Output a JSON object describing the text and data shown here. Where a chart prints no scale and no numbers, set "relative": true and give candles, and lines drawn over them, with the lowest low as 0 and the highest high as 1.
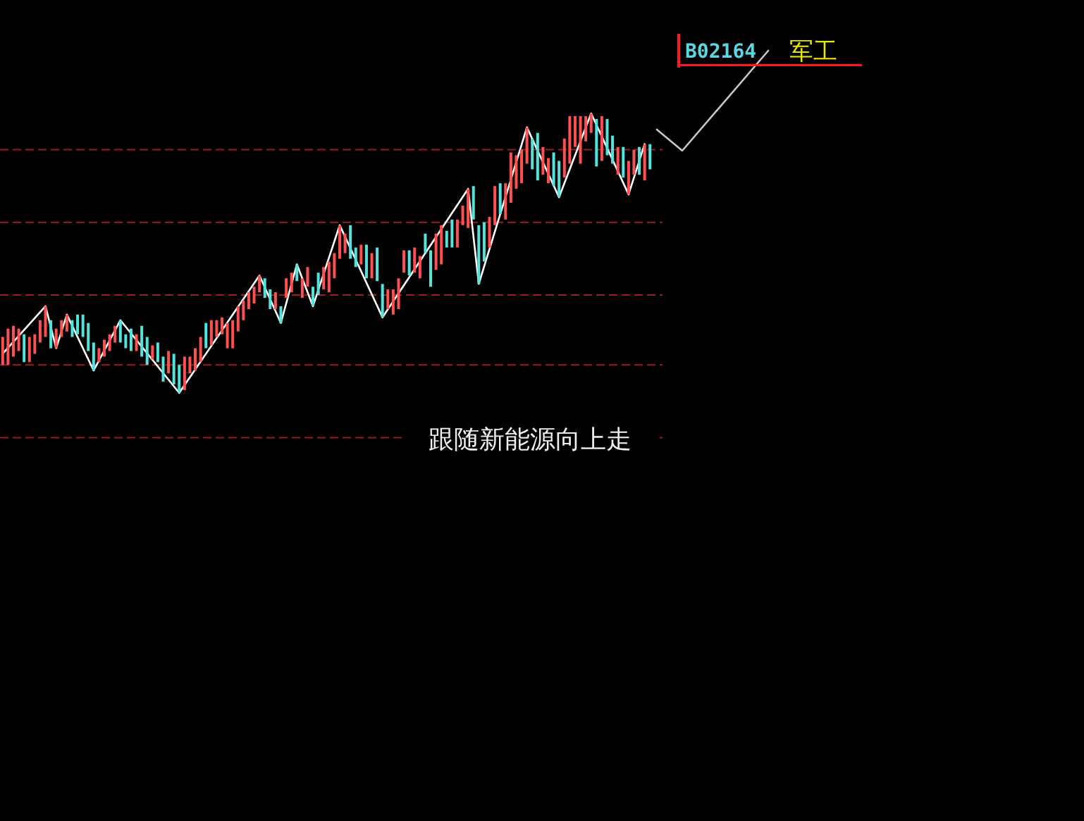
{
  "chart_data": {
    "type": "candlestick",
    "title": "B02164",
    "subtitle": "军工",
    "annotations": [
      "跟随新能源向上走"
    ],
    "relative": true,
    "categories": [
      null,
      null,
      null,
      null,
      null,
      null,
      null,
      null,
      null,
      null,
      null,
      null,
      null,
      null,
      null,
      null,
      null,
      null,
      null,
      null,
      null,
      null,
      null,
      null,
      null,
      null,
      null,
      null,
      null,
      null,
      null,
      null,
      null,
      null,
      null,
      null,
      null,
      null,
      null,
      null,
      null,
      null,
      null,
      null,
      null,
      null,
      null,
      null,
      null,
      null,
      null,
      null,
      null,
      null,
      null,
      null,
      null,
      null,
      null,
      null,
      null,
      null,
      null,
      null,
      null,
      null,
      null,
      null,
      null,
      null,
      null,
      null,
      null,
      null,
      null,
      null,
      null,
      null,
      null,
      null,
      null,
      null,
      null,
      null,
      null,
      null,
      null,
      null,
      null,
      null,
      null,
      null,
      null,
      null,
      null,
      null,
      null,
      null,
      null,
      null,
      null,
      null,
      null,
      null,
      null,
      null,
      null,
      null,
      null,
      null,
      null,
      null,
      null,
      null,
      null,
      null,
      null,
      null,
      null,
      null,
      null,
      null
    ],
    "ohlc": [
      [
        0.1,
        0.2,
        0.1,
        0.2
      ],
      [
        0.1,
        0.23,
        0.1,
        0.23
      ],
      [
        0.13,
        0.24,
        0.13,
        0.24
      ],
      [
        0.15,
        0.23,
        0.15,
        0.23
      ],
      [
        0.21,
        0.21,
        0.11,
        0.11
      ],
      [
        0.11,
        0.2,
        0.11,
        0.2
      ],
      [
        0.14,
        0.21,
        0.14,
        0.21
      ],
      [
        0.18,
        0.26,
        0.18,
        0.26
      ],
      [
        0.2,
        0.31,
        0.2,
        0.31
      ],
      [
        0.26,
        0.26,
        0.16,
        0.16
      ],
      [
        0.16,
        0.23,
        0.16,
        0.23
      ],
      [
        0.2,
        0.26,
        0.2,
        0.26
      ],
      [
        0.22,
        0.28,
        0.22,
        0.28
      ],
      [
        0.26,
        0.26,
        0.2,
        0.2
      ],
      [
        0.28,
        0.28,
        0.21,
        0.21
      ],
      [
        0.28,
        0.28,
        0.2,
        0.2
      ],
      [
        0.25,
        0.25,
        0.15,
        0.15
      ],
      [
        0.18,
        0.18,
        0.08,
        0.08
      ],
      [
        0.11,
        0.16,
        0.11,
        0.16
      ],
      [
        0.13,
        0.19,
        0.13,
        0.19
      ],
      [
        0.15,
        0.21,
        0.15,
        0.21
      ],
      [
        0.18,
        0.24,
        0.18,
        0.24
      ],
      [
        0.26,
        0.26,
        0.18,
        0.18
      ],
      [
        0.21,
        0.21,
        0.16,
        0.16
      ],
      [
        0.23,
        0.23,
        0.15,
        0.15
      ],
      [
        0.15,
        0.21,
        0.15,
        0.21
      ],
      [
        0.24,
        0.24,
        0.13,
        0.13
      ],
      [
        0.2,
        0.2,
        0.1,
        0.1
      ],
      [
        0.12,
        0.17,
        0.12,
        0.17
      ],
      [
        0.18,
        0.18,
        0.11,
        0.11
      ],
      [
        0.13,
        0.13,
        0.04,
        0.04
      ],
      [
        0.07,
        0.15,
        0.07,
        0.15
      ],
      [
        0.14,
        0.14,
        0.03,
        0.03
      ],
      [
        0.1,
        0.1,
        0,
        0
      ],
      [
        0.01,
        0.13,
        0.01,
        0.13
      ],
      [
        0.07,
        0.13,
        0.07,
        0.13
      ],
      [
        0.08,
        0.16,
        0.08,
        0.16
      ],
      [
        0.11,
        0.2,
        0.11,
        0.2
      ],
      [
        0.25,
        0.25,
        0.16,
        0.16
      ],
      [
        0.17,
        0.26,
        0.17,
        0.26
      ],
      [
        0.2,
        0.26,
        0.2,
        0.26
      ],
      [
        0.21,
        0.27,
        0.21,
        0.27
      ],
      [
        0.16,
        0.25,
        0.16,
        0.25
      ],
      [
        0.16,
        0.26,
        0.16,
        0.26
      ],
      [
        0.22,
        0.31,
        0.22,
        0.31
      ],
      [
        0.26,
        0.33,
        0.26,
        0.33
      ],
      [
        0.3,
        0.36,
        0.3,
        0.36
      ],
      [
        0.32,
        0.38,
        0.32,
        0.38
      ],
      [
        0.36,
        0.42,
        0.36,
        0.42
      ],
      [
        0.41,
        0.41,
        0.34,
        0.34
      ],
      [
        0.37,
        0.37,
        0.3,
        0.3
      ],
      [
        0.3,
        0.36,
        0.3,
        0.36
      ],
      [
        0.31,
        0.31,
        0.25,
        0.25
      ],
      [
        0.34,
        0.41,
        0.34,
        0.41
      ],
      [
        0.36,
        0.43,
        0.36,
        0.43
      ],
      [
        0.46,
        0.46,
        0.4,
        0.4
      ],
      [
        0.34,
        0.41,
        0.34,
        0.41
      ],
      [
        0.38,
        0.45,
        0.38,
        0.45
      ],
      [
        0.38,
        0.38,
        0.31,
        0.31
      ],
      [
        0.43,
        0.43,
        0.35,
        0.35
      ],
      [
        0.37,
        0.45,
        0.37,
        0.45
      ],
      [
        0.36,
        0.47,
        0.36,
        0.47
      ],
      [
        0.41,
        0.5,
        0.41,
        0.5
      ],
      [
        0.48,
        0.6,
        0.48,
        0.6
      ],
      [
        0.5,
        0.57,
        0.5,
        0.57
      ],
      [
        0.6,
        0.6,
        0.48,
        0.48
      ],
      [
        0.52,
        0.52,
        0.45,
        0.45
      ],
      [
        0.46,
        0.53,
        0.46,
        0.53
      ],
      [
        0.53,
        0.53,
        0.41,
        0.41
      ],
      [
        0.41,
        0.5,
        0.41,
        0.5
      ],
      [
        0.52,
        0.52,
        0.4,
        0.4
      ],
      [
        0.39,
        0.39,
        0.27,
        0.27
      ],
      [
        0.3,
        0.37,
        0.3,
        0.37
      ],
      [
        0.28,
        0.37,
        0.28,
        0.37
      ],
      [
        0.3,
        0.41,
        0.3,
        0.41
      ],
      [
        0.43,
        0.51,
        0.43,
        0.51
      ],
      [
        0.51,
        0.51,
        0.42,
        0.42
      ],
      [
        0.43,
        0.52,
        0.43,
        0.52
      ],
      [
        0.41,
        0.49,
        0.41,
        0.49
      ],
      [
        0.57,
        0.57,
        0.5,
        0.5
      ],
      [
        0.51,
        0.51,
        0.38,
        0.38
      ],
      [
        0.44,
        0.57,
        0.44,
        0.57
      ],
      [
        0.46,
        0.6,
        0.46,
        0.6
      ],
      [
        0.58,
        0.58,
        0.52,
        0.52
      ],
      [
        0.62,
        0.62,
        0.52,
        0.52
      ],
      [
        0.52,
        0.62,
        0.52,
        0.62
      ],
      [
        0.6,
        0.67,
        0.6,
        0.67
      ],
      [
        0.59,
        0.73,
        0.59,
        0.73
      ],
      [
        0.74,
        0.74,
        0.62,
        0.62
      ],
      [
        0.6,
        0.6,
        0.39,
        0.39
      ],
      [
        0.61,
        0.61,
        0.47,
        0.47
      ],
      [
        0.52,
        0.63,
        0.52,
        0.63
      ],
      [
        0.6,
        0.74,
        0.6,
        0.74
      ],
      [
        0.75,
        0.75,
        0.64,
        0.64
      ],
      [
        0.62,
        0.75,
        0.62,
        0.75
      ],
      [
        0.68,
        0.86,
        0.68,
        0.86
      ],
      [
        0.73,
        0.85,
        0.73,
        0.85
      ],
      [
        0.75,
        0.87,
        0.75,
        0.87
      ],
      [
        0.82,
        0.95,
        0.82,
        0.95
      ],
      [
        0.91,
        0.91,
        0.8,
        0.8
      ],
      [
        0.93,
        0.93,
        0.76,
        0.76
      ],
      [
        0.78,
        0.88,
        0.78,
        0.88
      ],
      [
        0.75,
        0.84,
        0.75,
        0.84
      ],
      [
        0.86,
        0.86,
        0.74,
        0.74
      ],
      [
        0.83,
        0.83,
        0.7,
        0.7
      ],
      [
        0.77,
        0.91,
        0.77,
        0.91
      ],
      [
        0.82,
        0.99,
        0.82,
        0.99
      ],
      [
        0.88,
        0.99,
        0.88,
        0.99
      ],
      [
        0.82,
        0.99,
        0.82,
        0.99
      ],
      [
        0.9,
        0.99,
        0.9,
        0.99
      ],
      [
        0.93,
        1,
        0.93,
        1
      ],
      [
        0.98,
        0.98,
        0.81,
        0.81
      ],
      [
        0.83,
        0.99,
        0.83,
        0.99
      ],
      [
        0.98,
        0.98,
        0.85,
        0.85
      ],
      [
        0.92,
        0.92,
        0.82,
        0.82
      ],
      [
        0.78,
        0.88,
        0.78,
        0.88
      ],
      [
        0.88,
        0.88,
        0.77,
        0.77
      ],
      [
        0.71,
        0.83,
        0.71,
        0.83
      ],
      [
        0.78,
        0.87,
        0.78,
        0.87
      ],
      [
        0.88,
        0.88,
        0.78,
        0.78
      ],
      [
        0.76,
        0.89,
        0.76,
        0.89
      ],
      [
        0.89,
        0.89,
        0.8,
        0.8
      ]
    ],
    "colors": [
      "#ff4f4f",
      "#ff4f4f",
      "#ff4f4f",
      "#ff4f4f",
      "#52e3dc",
      "#ff4f4f",
      "#ff4f4f",
      "#ff4f4f",
      "#ff4f4f",
      "#52e3dc",
      "#ff4f4f",
      "#ff4f4f",
      "#ff4f4f",
      "#52e3dc",
      "#52e3dc",
      "#52e3dc",
      "#52e3dc",
      "#52e3dc",
      "#ff4f4f",
      "#ff4f4f",
      "#ff4f4f",
      "#ff4f4f",
      "#52e3dc",
      "#52e3dc",
      "#52e3dc",
      "#ff4f4f",
      "#52e3dc",
      "#52e3dc",
      "#ff4f4f",
      "#52e3dc",
      "#52e3dc",
      "#ff4f4f",
      "#52e3dc",
      "#52e3dc",
      "#ff4f4f",
      "#ff4f4f",
      "#ff4f4f",
      "#ff4f4f",
      "#52e3dc",
      "#ff4f4f",
      "#ff4f4f",
      "#ff4f4f",
      "#ff4f4f",
      "#ff4f4f",
      "#ff4f4f",
      "#ff4f4f",
      "#ff4f4f",
      "#ff4f4f",
      "#ff4f4f",
      "#52e3dc",
      "#52e3dc",
      "#ff4f4f",
      "#52e3dc",
      "#ff4f4f",
      "#ff4f4f",
      "#52e3dc",
      "#ff4f4f",
      "#ff4f4f",
      "#52e3dc",
      "#52e3dc",
      "#ff4f4f",
      "#ff4f4f",
      "#ff4f4f",
      "#ff4f4f",
      "#ff4f4f",
      "#52e3dc",
      "#52e3dc",
      "#ff4f4f",
      "#52e3dc",
      "#ff4f4f",
      "#52e3dc",
      "#52e3dc",
      "#ff4f4f",
      "#ff4f4f",
      "#ff4f4f",
      "#ff4f4f",
      "#52e3dc",
      "#ff4f4f",
      "#ff4f4f",
      "#52e3dc",
      "#52e3dc",
      "#ff4f4f",
      "#ff4f4f",
      "#52e3dc",
      "#52e3dc",
      "#ff4f4f",
      "#ff4f4f",
      "#ff4f4f",
      "#52e3dc",
      "#52e3dc",
      "#52e3dc",
      "#ff4f4f",
      "#ff4f4f",
      "#52e3dc",
      "#ff4f4f",
      "#ff4f4f",
      "#ff4f4f",
      "#ff4f4f",
      "#ff4f4f",
      "#52e3dc",
      "#52e3dc",
      "#ff4f4f",
      "#ff4f4f",
      "#52e3dc",
      "#52e3dc",
      "#ff4f4f",
      "#ff4f4f",
      "#ff4f4f",
      "#ff4f4f",
      "#ff4f4f",
      "#ff4f4f",
      "#52e3dc",
      "#ff4f4f",
      "#52e3dc",
      "#52e3dc",
      "#ff4f4f",
      "#52e3dc",
      "#ff4f4f",
      "#ff4f4f",
      "#52e3dc",
      "#ff4f4f",
      "#52e3dc"
    ],
    "series": [
      {
        "type": "line",
        "color": "#ffffff",
        "values": [
          0.14,
          null,
          null,
          null,
          null,
          null,
          null,
          null,
          0.31,
          null,
          0.16,
          null,
          0.28,
          null,
          null,
          null,
          null,
          0.08,
          null,
          null,
          null,
          null,
          0.26,
          null,
          null,
          null,
          null,
          null,
          null,
          null,
          null,
          null,
          null,
          0,
          null,
          null,
          null,
          null,
          null,
          null,
          null,
          null,
          null,
          null,
          null,
          null,
          null,
          null,
          0.42,
          null,
          null,
          null,
          0.25,
          null,
          null,
          0.46,
          null,
          null,
          0.31,
          null,
          null,
          null,
          null,
          0.6,
          null,
          null,
          null,
          null,
          null,
          null,
          null,
          0.27,
          null,
          null,
          null,
          null,
          null,
          null,
          null,
          null,
          null,
          null,
          null,
          null,
          null,
          null,
          null,
          0.73,
          null,
          0.39,
          null,
          null,
          null,
          null,
          null,
          null,
          null,
          null,
          0.95,
          null,
          null,
          null,
          null,
          null,
          0.7,
          null,
          null,
          null,
          null,
          null,
          1.0,
          null,
          null,
          null,
          null,
          null,
          null,
          0.71,
          null,
          null,
          0.89,
          null
        ]
      }
    ],
    "ref_lines": [
      {
        "axis": "y",
        "value": 0.87,
        "color": "#9c1b1b",
        "line_style": "dashed"
      },
      {
        "axis": "y",
        "value": 0.61,
        "color": "#9c1b1b",
        "line_style": "dashed"
      },
      {
        "axis": "y",
        "value": 0.35,
        "color": "#9c1b1b",
        "line_style": "dashed"
      },
      {
        "axis": "y",
        "value": 0.1,
        "color": "#9c1b1b",
        "line_style": "dashed"
      },
      {
        "axis": "y",
        "value": -0.16,
        "color": "#9c1b1b",
        "line_style": "dashed"
      }
    ]
  }
}
